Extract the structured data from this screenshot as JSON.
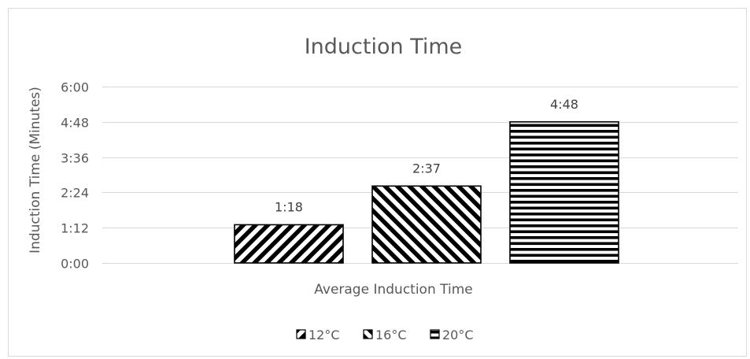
{
  "chart_data": {
    "type": "bar",
    "title": "Induction Time",
    "xlabel": "Average Induction Time",
    "ylabel": "Induction Time (Minutes)",
    "categories": [
      "Average Induction Time"
    ],
    "y_unit": "minutes (m:ss)",
    "ylim": [
      0,
      6
    ],
    "y_ticks": [
      {
        "value": 0,
        "label": "0:00"
      },
      {
        "value": 1.2,
        "label": "1:12"
      },
      {
        "value": 2.4,
        "label": "2:24"
      },
      {
        "value": 3.6,
        "label": "3:36"
      },
      {
        "value": 4.8,
        "label": "4:48"
      },
      {
        "value": 6,
        "label": "6:00"
      }
    ],
    "series": [
      {
        "name": "12°C",
        "values": [
          1.3
        ],
        "data_label": "1:18",
        "pattern": "diagonal-down"
      },
      {
        "name": "16°C",
        "values": [
          2.6167
        ],
        "data_label": "2:37",
        "pattern": "diagonal-up"
      },
      {
        "name": "20°C",
        "values": [
          4.8
        ],
        "data_label": "4:48",
        "pattern": "horizontal"
      }
    ],
    "grid": true,
    "legend_position": "bottom"
  }
}
